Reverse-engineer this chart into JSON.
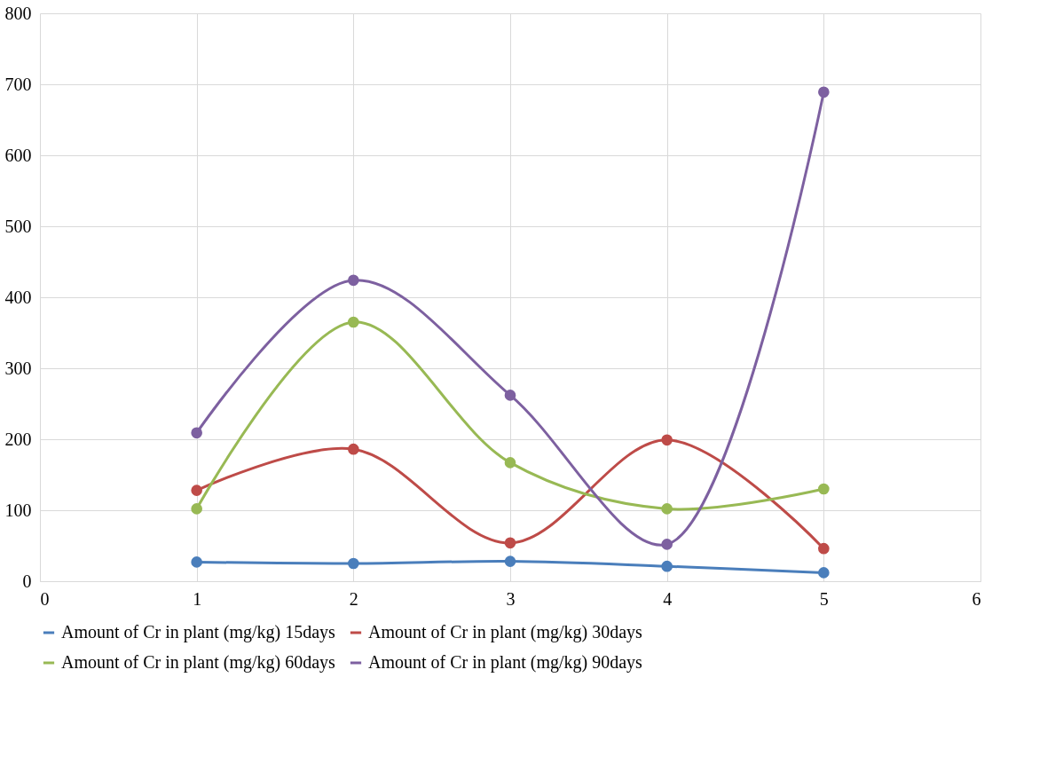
{
  "chart_data": {
    "type": "line",
    "x": [
      1,
      2,
      3,
      4,
      5
    ],
    "xlim": [
      0,
      6
    ],
    "xticks": [
      0,
      1,
      2,
      3,
      4,
      5,
      6
    ],
    "ylim": [
      0,
      800
    ],
    "yticks": [
      0,
      100,
      200,
      300,
      400,
      500,
      600,
      700,
      800
    ],
    "grid": true,
    "legend": "bottom",
    "marker": "circle",
    "line_style": "solid",
    "series": [
      {
        "name": "Amount of Cr in plant (mg/kg) 15days",
        "color": "#4a7ebb",
        "values": [
          27,
          25,
          28,
          21,
          12
        ]
      },
      {
        "name": "Amount of Cr in plant (mg/kg) 30days",
        "color": "#be4b48",
        "values": [
          128,
          186,
          54,
          199,
          46
        ]
      },
      {
        "name": "Amount of Cr in plant (mg/kg) 60days",
        "color": "#98b954",
        "values": [
          102,
          365,
          167,
          102,
          130
        ]
      },
      {
        "name": "Amount of Cr in plant (mg/kg) 90days",
        "color": "#7d60a0",
        "values": [
          209,
          424,
          262,
          52,
          689
        ]
      }
    ]
  }
}
